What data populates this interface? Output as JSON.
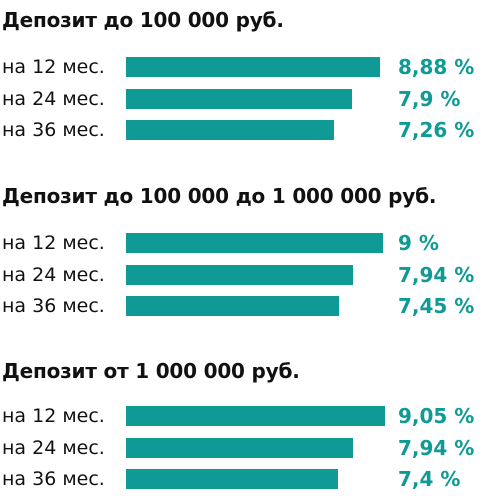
{
  "chart_data": [
    {
      "type": "bar",
      "orientation": "horizontal",
      "title": "Депозит до 100 000 руб.",
      "categories": [
        "на 12 мес.",
        "на 24 мес.",
        "на 36 мес."
      ],
      "values": [
        8.88,
        7.9,
        7.26
      ],
      "value_labels": [
        "8,88 %",
        "7,9 %",
        "7,26 %"
      ],
      "unit": "%",
      "grid": false,
      "legend": "none",
      "color": "#0f9a96"
    },
    {
      "type": "bar",
      "orientation": "horizontal",
      "title": "Депозит до 100 000 до 1 000 000 руб.",
      "categories": [
        "на 12 мес.",
        "на 24 мес.",
        "на 36 мес."
      ],
      "values": [
        9,
        7.94,
        7.45
      ],
      "value_labels": [
        "9 %",
        "7,94 %",
        "7,45 %"
      ],
      "unit": "%",
      "grid": false,
      "legend": "none",
      "color": "#0f9a96"
    },
    {
      "type": "bar",
      "orientation": "horizontal",
      "title": "Депозит от 1 000 000 руб.",
      "categories": [
        "на 12 мес.",
        "на 24 мес.",
        "на 36 мес."
      ],
      "values": [
        9.05,
        7.94,
        7.4
      ],
      "value_labels": [
        "9,05 %",
        "7,94 %",
        "7,4 %"
      ],
      "unit": "%",
      "grid": false,
      "legend": "none",
      "color": "#0f9a96"
    }
  ]
}
